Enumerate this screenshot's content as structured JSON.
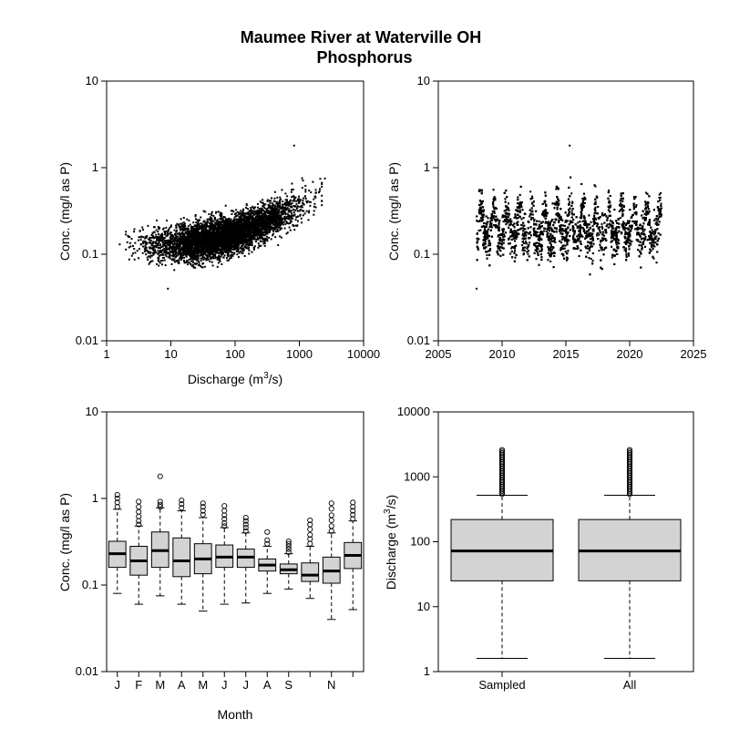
{
  "figure": {
    "title_line1": "Maumee River at Waterville OH",
    "title_line2": "Phosphorus"
  },
  "chart_data": [
    {
      "type": "scatter",
      "id": "conc-vs-discharge",
      "xlabel": "Discharge (m3/s)",
      "xlabel_base": "Discharge (m",
      "xlabel_sup": "3",
      "xlabel_tail": "/s)",
      "ylabel": "Conc. (mg/l as P)",
      "x_scale": "log",
      "y_scale": "log",
      "xlim": [
        1,
        10000
      ],
      "ylim": [
        0.01,
        10
      ],
      "x_ticks": [
        "1",
        "10",
        "100",
        "1000",
        "10000"
      ],
      "y_ticks": [
        "0.01",
        "0.1",
        "1",
        "10"
      ],
      "grid": false,
      "trend": {
        "x": [
          3,
          10,
          30,
          100,
          300,
          1000,
          2500
        ],
        "y_median": [
          0.13,
          0.13,
          0.14,
          0.17,
          0.24,
          0.38,
          0.55
        ]
      },
      "outliers": [
        {
          "x": 830,
          "y": 1.8
        },
        {
          "x": 9,
          "y": 0.04
        },
        {
          "x": 1.6,
          "y": 0.13
        },
        {
          "x": 2500,
          "y": 0.75
        }
      ],
      "n_points_approx": 5000
    },
    {
      "type": "scatter",
      "id": "conc-vs-time",
      "xlabel": "",
      "ylabel": "Conc. (mg/l as P)",
      "x_scale": "linear",
      "y_scale": "log",
      "xlim": [
        2005,
        2025
      ],
      "ylim": [
        0.01,
        10
      ],
      "x_ticks": [
        "2005",
        "2010",
        "2015",
        "2020",
        "2025"
      ],
      "y_ticks": [
        "0.01",
        "0.1",
        "1",
        "10"
      ],
      "grid": false,
      "x_range_data": [
        2008.0,
        2022.5
      ],
      "outliers": [
        {
          "x": 2008.0,
          "y": 0.04
        },
        {
          "x": 2015.3,
          "y": 1.8
        }
      ],
      "n_points_approx": 5000
    },
    {
      "type": "boxplot",
      "id": "conc-by-month",
      "xlabel": "Month",
      "ylabel": "Conc. (mg/l as P)",
      "y_scale": "log",
      "ylim": [
        0.01,
        10
      ],
      "y_ticks": [
        "0.01",
        "0.1",
        "1",
        "10"
      ],
      "categories": [
        "Jan",
        "Feb",
        "Mar",
        "Apr",
        "May",
        "Jun",
        "Jul",
        "Aug",
        "Sep",
        "Oct",
        "Nov",
        "Dec"
      ],
      "tick_labels": [
        "J",
        "F",
        "M",
        "A",
        "M",
        "J",
        "J",
        "A",
        "S",
        "",
        "N",
        ""
      ],
      "boxes": [
        {
          "q1": 0.16,
          "median": 0.23,
          "q3": 0.32,
          "whisker_low": 0.08,
          "whisker_high": 0.75,
          "outliers": [
            0.8,
            0.9,
            1.0,
            1.1
          ]
        },
        {
          "q1": 0.13,
          "median": 0.19,
          "q3": 0.28,
          "whisker_low": 0.06,
          "whisker_high": 0.48,
          "outliers": [
            0.5,
            0.55,
            0.62,
            0.7,
            0.8,
            0.92
          ]
        },
        {
          "q1": 0.16,
          "median": 0.25,
          "q3": 0.41,
          "whisker_low": 0.075,
          "whisker_high": 0.78,
          "outliers": [
            0.8,
            0.85,
            0.92,
            1.8
          ]
        },
        {
          "q1": 0.125,
          "median": 0.19,
          "q3": 0.35,
          "whisker_low": 0.06,
          "whisker_high": 0.72,
          "outliers": [
            0.78,
            0.86,
            0.95
          ]
        },
        {
          "q1": 0.135,
          "median": 0.2,
          "q3": 0.3,
          "whisker_low": 0.05,
          "whisker_high": 0.6,
          "outliers": [
            0.65,
            0.72,
            0.8,
            0.88
          ]
        },
        {
          "q1": 0.16,
          "median": 0.21,
          "q3": 0.29,
          "whisker_low": 0.06,
          "whisker_high": 0.46,
          "outliers": [
            0.48,
            0.52,
            0.58,
            0.64,
            0.72,
            0.82
          ]
        },
        {
          "q1": 0.16,
          "median": 0.21,
          "q3": 0.26,
          "whisker_low": 0.062,
          "whisker_high": 0.4,
          "outliers": [
            0.42,
            0.46,
            0.5,
            0.55,
            0.6
          ]
        },
        {
          "q1": 0.145,
          "median": 0.17,
          "q3": 0.2,
          "whisker_low": 0.08,
          "whisker_high": 0.28,
          "outliers": [
            0.3,
            0.33,
            0.41
          ]
        },
        {
          "q1": 0.135,
          "median": 0.15,
          "q3": 0.175,
          "whisker_low": 0.09,
          "whisker_high": 0.23,
          "outliers": [
            0.24,
            0.26,
            0.28,
            0.3,
            0.32
          ]
        },
        {
          "q1": 0.11,
          "median": 0.13,
          "q3": 0.18,
          "whisker_low": 0.07,
          "whisker_high": 0.28,
          "outliers": [
            0.3,
            0.34,
            0.38,
            0.44,
            0.5,
            0.56
          ]
        },
        {
          "q1": 0.105,
          "median": 0.145,
          "q3": 0.21,
          "whisker_low": 0.04,
          "whisker_high": 0.4,
          "outliers": [
            0.42,
            0.48,
            0.56,
            0.64,
            0.76,
            0.88
          ]
        },
        {
          "q1": 0.155,
          "median": 0.22,
          "q3": 0.31,
          "whisker_low": 0.052,
          "whisker_high": 0.55,
          "outliers": [
            0.58,
            0.65,
            0.72,
            0.8,
            0.9
          ]
        }
      ],
      "box_fill": "#d3d3d3"
    },
    {
      "type": "boxplot",
      "id": "discharge-boxes",
      "xlabel": "",
      "ylabel": "Discharge (m3/s)",
      "ylabel_base": "Discharge (m",
      "ylabel_sup": "3",
      "ylabel_tail": "/s)",
      "y_scale": "log",
      "ylim": [
        1,
        10000
      ],
      "y_ticks": [
        "1",
        "10",
        "100",
        "1000",
        "10000"
      ],
      "categories": [
        "Sampled",
        "All"
      ],
      "boxes": [
        {
          "q1": 25,
          "median": 72,
          "q3": 220,
          "whisker_low": 1.6,
          "whisker_high": 520,
          "outliers_range": [
            540,
            2600
          ]
        },
        {
          "q1": 25,
          "median": 72,
          "q3": 220,
          "whisker_low": 1.6,
          "whisker_high": 520,
          "outliers_range": [
            540,
            2600
          ]
        }
      ],
      "box_fill": "#d3d3d3"
    }
  ]
}
